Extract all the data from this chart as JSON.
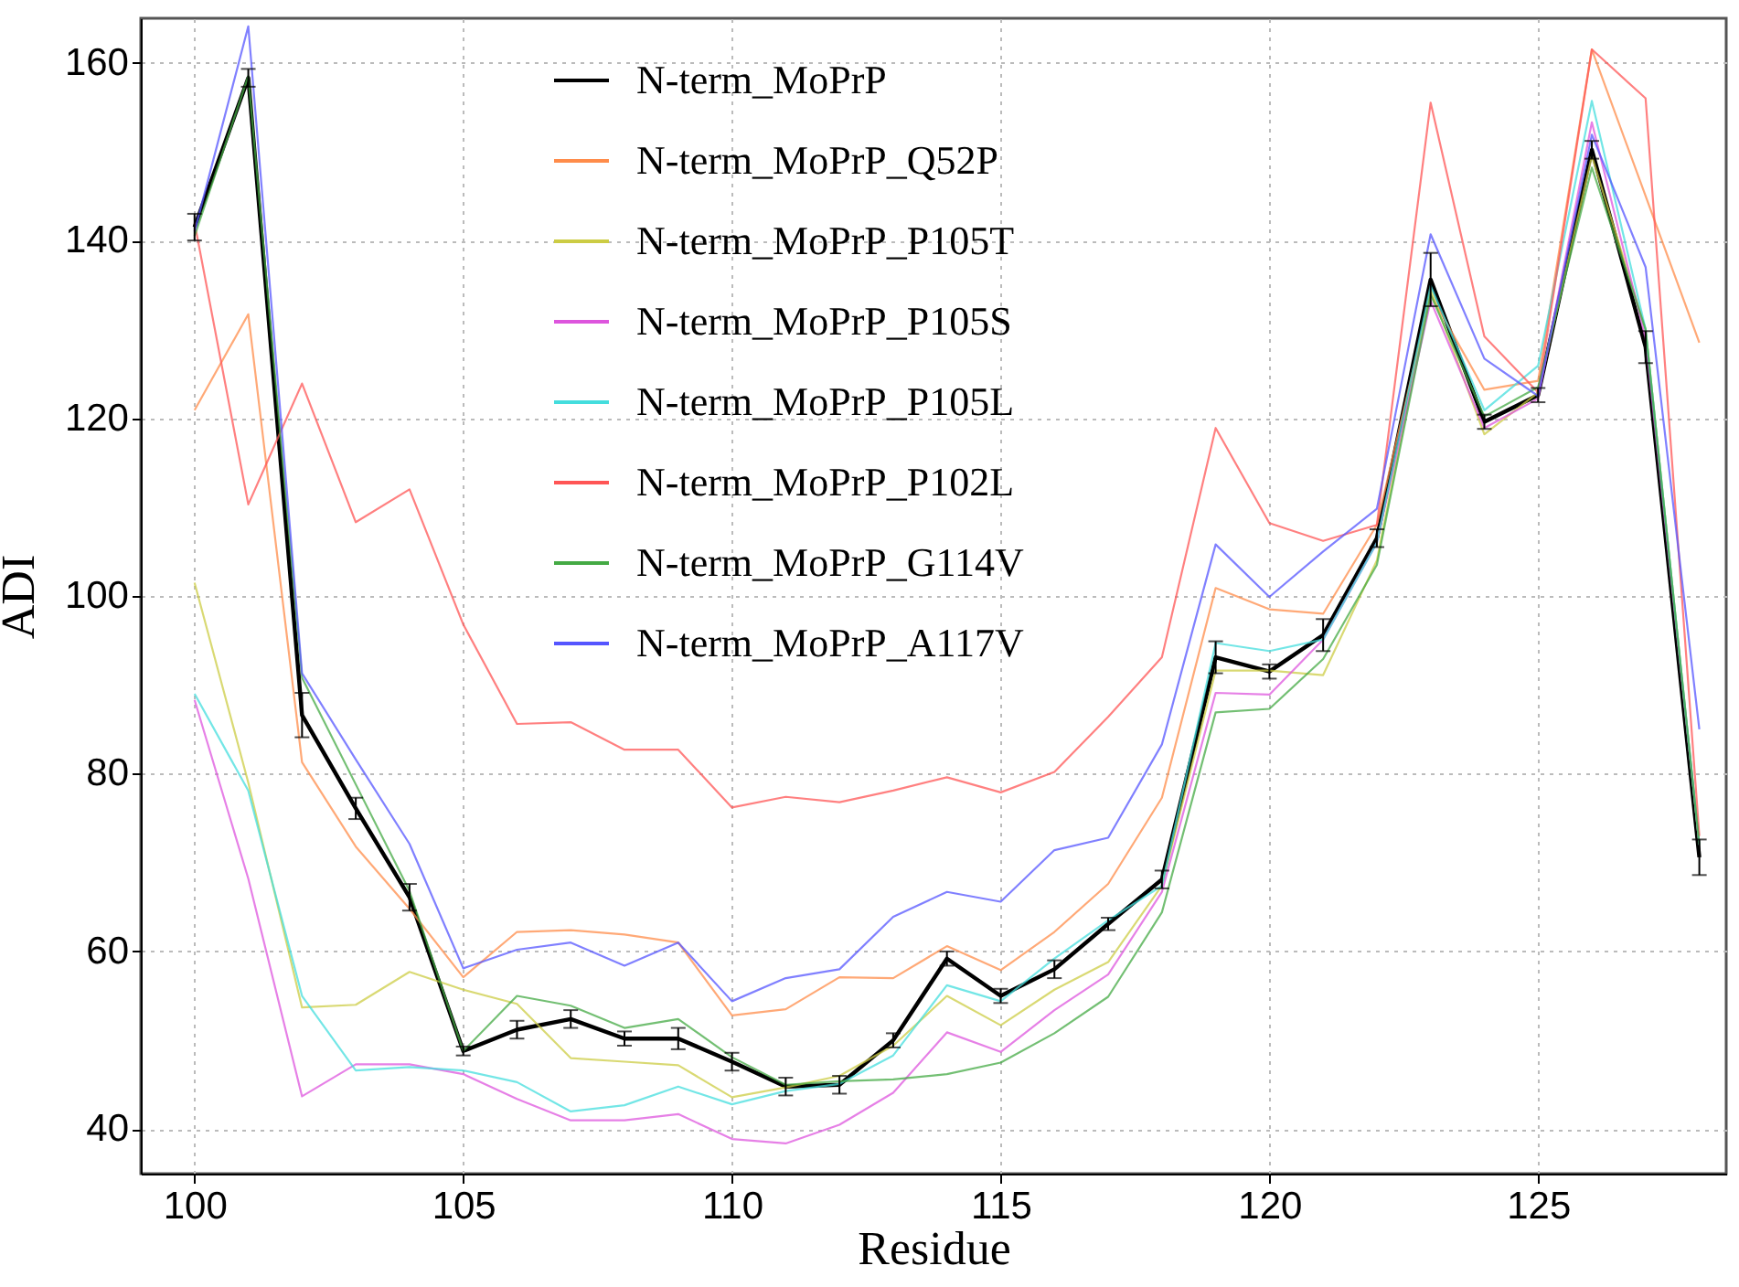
{
  "chart_data": {
    "type": "line",
    "xlabel": "Residue",
    "ylabel": "ADI",
    "x": [
      100,
      101,
      102,
      103,
      104,
      105,
      106,
      107,
      108,
      109,
      110,
      111,
      112,
      113,
      114,
      115,
      116,
      117,
      118,
      119,
      120,
      121,
      122,
      123,
      124,
      125,
      126,
      127,
      128
    ],
    "xlim": [
      99,
      128.5
    ],
    "xticks": [
      100,
      105,
      110,
      115,
      120,
      125
    ],
    "ylim": [
      35,
      165
    ],
    "yticks": [
      40,
      60,
      80,
      100,
      120,
      140,
      160
    ],
    "grid": true,
    "legend": "top",
    "line_style": "solid",
    "series": [
      {
        "name": "N-term_MoPrP",
        "color": "#000000",
        "values": [
          141.5,
          158.3,
          86.6,
          76.1,
          66.1,
          48.8,
          51.2,
          52.4,
          50.2,
          50.2,
          47.6,
          44.8,
          45.0,
          50.0,
          59.2,
          55.0,
          58.0,
          63.1,
          68.1,
          93.1,
          91.5,
          95.6,
          106.5,
          135.6,
          119.6,
          122.6,
          150.2,
          128,
          70.6
        ],
        "errors": [
          1.5,
          1.0,
          2.5,
          1.2,
          1.5,
          0.5,
          1.0,
          1.0,
          0.8,
          1.2,
          1.0,
          1.0,
          1.0,
          0.8,
          0.8,
          0.8,
          1.0,
          0.7,
          1.0,
          1.8,
          0.8,
          1.8,
          1.0,
          3.0,
          0.8,
          0.8,
          1.0,
          1.8,
          2.0
        ]
      },
      {
        "name": "N-term_MoPrP_Q52P",
        "color": "#ff8c4a",
        "values": [
          120.9,
          131.7,
          81.3,
          71.8,
          64.8,
          57.1,
          62.2,
          62.4,
          61.9,
          61.0,
          52.8,
          53.5,
          57.1,
          57.0,
          60.6,
          57.9,
          62.2,
          67.6,
          77.3,
          100.9,
          98.5,
          98.0,
          108.0,
          133.9,
          123.2,
          124.2,
          161.5,
          145,
          128.5
        ]
      },
      {
        "name": "N-term_MoPrP_P105T",
        "color": "#cccc44",
        "values": [
          101.5,
          79,
          53.7,
          54.0,
          57.7,
          55.7,
          54.1,
          48.0,
          47.6,
          47.2,
          43.6,
          44.7,
          46.0,
          49.4,
          55.0,
          51.7,
          55.7,
          58.8,
          67.4,
          91.6,
          91.6,
          91.1,
          104,
          134.5,
          118.2,
          122.9,
          149.5,
          130,
          72
        ]
      },
      {
        "name": "N-term_MoPrP_P105S",
        "color": "#dd55dd",
        "values": [
          88.3,
          68.2,
          43.7,
          47.3,
          47.3,
          46.2,
          43.4,
          41.0,
          41.0,
          41.7,
          38.9,
          38.4,
          40.5,
          44.1,
          50.9,
          48.7,
          53.4,
          57.4,
          66.7,
          89.1,
          88.9,
          95.1,
          106,
          133.2,
          118.9,
          122.2,
          153.3,
          129,
          72
        ]
      },
      {
        "name": "N-term_MoPrP_P105L",
        "color": "#44dddd",
        "values": [
          89.0,
          78.1,
          55.0,
          46.6,
          47.0,
          46.6,
          45.3,
          42.0,
          42.7,
          44.8,
          42.8,
          44.3,
          45.1,
          48.3,
          56.2,
          54.4,
          59.2,
          63.5,
          67.4,
          94.7,
          93.8,
          95.1,
          106,
          134.9,
          120.9,
          125.9,
          155.7,
          130,
          72
        ]
      },
      {
        "name": "N-term_MoPrP_P102L",
        "color": "#ff5555",
        "values": [
          142,
          110.3,
          123.9,
          108.3,
          112.0,
          96.8,
          85.6,
          85.8,
          82.7,
          82.7,
          76.2,
          77.4,
          76.8,
          78.1,
          79.6,
          77.9,
          80.2,
          86.4,
          93.1,
          118.9,
          108.2,
          106.2,
          108.0,
          155.5,
          129.2,
          122.9,
          161.5,
          156,
          73
        ]
      },
      {
        "name": "N-term_MoPrP_G114V",
        "color": "#44aa44",
        "values": [
          140.5,
          158.5,
          90.8,
          78.8,
          66.8,
          48.8,
          55.0,
          53.9,
          51.4,
          52.4,
          48.1,
          45.0,
          45.4,
          45.6,
          46.2,
          47.5,
          50.8,
          54.9,
          64.4,
          86.9,
          87.3,
          92.9,
          103.5,
          133.9,
          120.2,
          123.5,
          148.2,
          130,
          72
        ]
      },
      {
        "name": "N-term_MoPrP_A117V",
        "color": "#5555ff",
        "values": [
          141,
          164.1,
          91.3,
          81.6,
          72.1,
          58.1,
          60.2,
          61.0,
          58.4,
          61.0,
          54.4,
          57.0,
          58.0,
          63.9,
          66.7,
          65.6,
          71.4,
          72.8,
          83.3,
          105.8,
          99.9,
          105,
          109.8,
          140.7,
          126.7,
          122.5,
          151.9,
          137,
          85
        ]
      }
    ]
  }
}
